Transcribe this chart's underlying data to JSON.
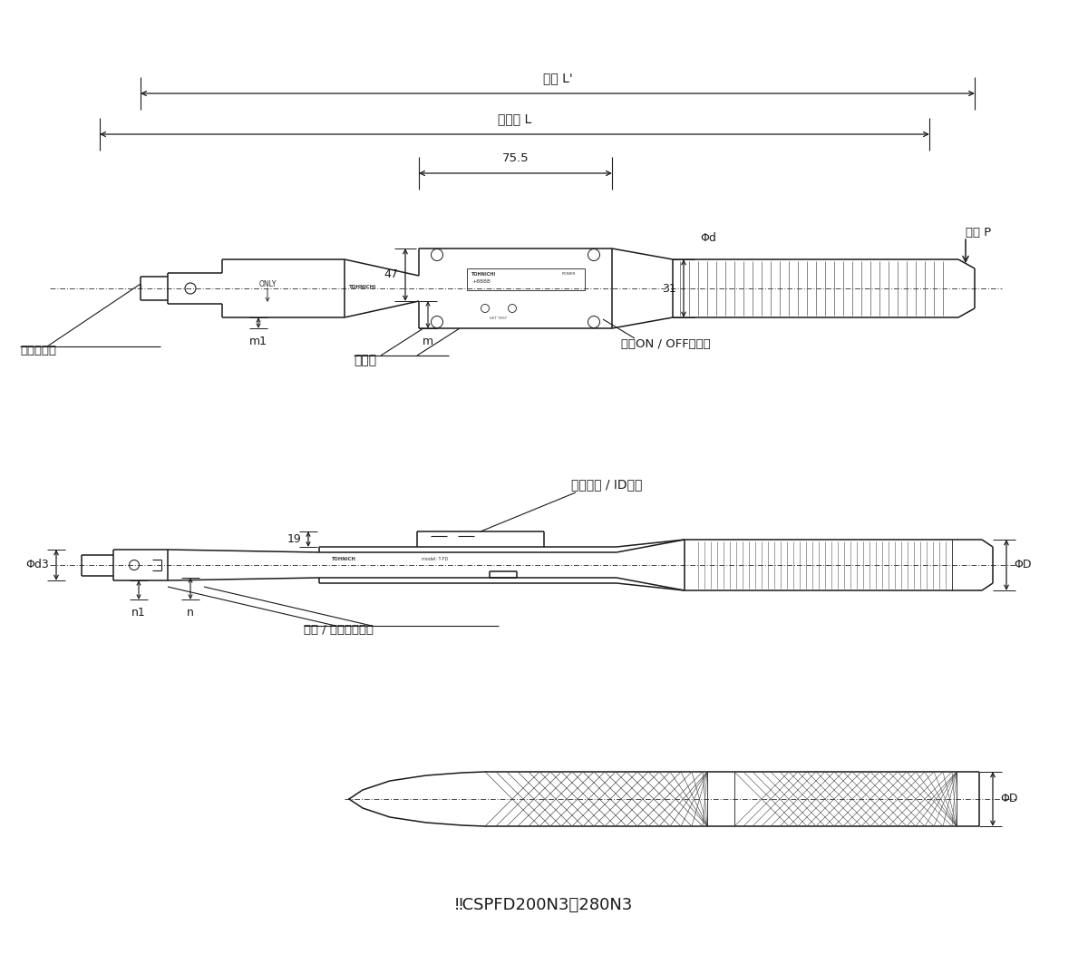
{
  "bg_color": "#ffffff",
  "line_color": "#1a1a1a",
  "text_color": "#1a1a1a",
  "fig_width": 12.0,
  "fig_height": 10.53,
  "dpi": 100,
  "annotations": {
    "zencho": "全長 L'",
    "yukocho": "有効長 L",
    "dim_755": "75.5",
    "dim_47": "47",
    "dim_31": "31",
    "dim_phid": "Φd",
    "dim_m1": "m1",
    "dim_m": "m",
    "bolt_center": "ボルト中心",
    "hyojibo": "表示部",
    "dengen": "電源ON / OFFボタン",
    "teariki": "手力 P",
    "group_id": "グループ / ID表示",
    "dim_phid3": "Φd3",
    "dim_n1": "n1",
    "dim_n": "n",
    "dim_19": "19",
    "dim_phiD": "ΦD",
    "katashiki": "型式 / 製造番号刻印",
    "bottom_note": "‼CSPFD200N3・280N3"
  }
}
